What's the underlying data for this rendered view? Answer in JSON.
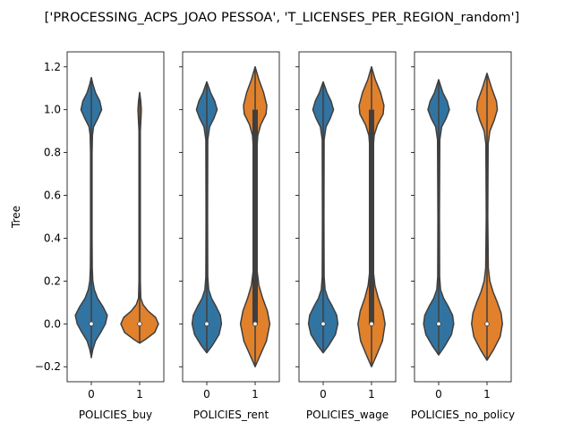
{
  "chart_data": {
    "type": "violin",
    "title": "['PROCESSING_ACPS_JOAO PESSOA', 'T_LICENSES_PER_REGION_random']",
    "ylabel": "Tree",
    "ylim": [
      -0.27,
      1.27
    ],
    "yticks": [
      -0.2,
      0.0,
      0.2,
      0.4,
      0.6,
      0.8,
      1.0,
      1.2
    ],
    "ytick_labels": [
      "−0.2",
      "0.0",
      "0.2",
      "0.4",
      "0.6",
      "0.8",
      "1.0",
      "1.2"
    ],
    "colors": {
      "0": "#3274a1",
      "1": "#e1812c",
      "edge": "#3f3f3f"
    },
    "panels": [
      {
        "xlabel": "POLICIES_buy",
        "categories": [
          "0",
          "1"
        ],
        "violins": [
          {
            "category": "0",
            "min": -0.16,
            "max": 1.15,
            "median": 0.0,
            "q1": 0.0,
            "q3": 0.0,
            "profile": [
              [
                -0.155,
                0
              ],
              [
                -0.12,
                0.08
              ],
              [
                -0.08,
                0.22
              ],
              [
                -0.04,
                0.5
              ],
              [
                0.0,
                0.75
              ],
              [
                0.04,
                0.85
              ],
              [
                0.08,
                0.62
              ],
              [
                0.12,
                0.33
              ],
              [
                0.16,
                0.16
              ],
              [
                0.2,
                0.08
              ],
              [
                0.26,
                0.05
              ],
              [
                0.4,
                0.04
              ],
              [
                0.6,
                0.04
              ],
              [
                0.8,
                0.04
              ],
              [
                0.88,
                0.06
              ],
              [
                0.92,
                0.12
              ],
              [
                0.96,
                0.35
              ],
              [
                1.0,
                0.55
              ],
              [
                1.04,
                0.45
              ],
              [
                1.08,
                0.22
              ],
              [
                1.12,
                0.08
              ],
              [
                1.15,
                0
              ]
            ]
          },
          {
            "category": "1",
            "min": -0.09,
            "max": 1.08,
            "median": 0.0,
            "q1": 0.0,
            "q3": 0.0,
            "profile": [
              [
                -0.09,
                0
              ],
              [
                -0.07,
                0.35
              ],
              [
                -0.04,
                0.8
              ],
              [
                0.0,
                1.0
              ],
              [
                0.03,
                0.85
              ],
              [
                0.06,
                0.45
              ],
              [
                0.09,
                0.18
              ],
              [
                0.12,
                0.06
              ],
              [
                0.2,
                0.035
              ],
              [
                0.5,
                0.035
              ],
              [
                0.9,
                0.035
              ],
              [
                0.96,
                0.07
              ],
              [
                1.0,
                0.09
              ],
              [
                1.04,
                0.06
              ],
              [
                1.08,
                0
              ]
            ]
          }
        ]
      },
      {
        "xlabel": "POLICIES_rent",
        "categories": [
          "0",
          "1"
        ],
        "violins": [
          {
            "category": "0",
            "min": -0.135,
            "max": 1.13,
            "median": 0.0,
            "q1": 0.0,
            "q3": 0.0,
            "profile": [
              [
                -0.135,
                0
              ],
              [
                -0.1,
                0.3
              ],
              [
                -0.05,
                0.65
              ],
              [
                0.0,
                0.78
              ],
              [
                0.04,
                0.72
              ],
              [
                0.08,
                0.5
              ],
              [
                0.12,
                0.25
              ],
              [
                0.16,
                0.1
              ],
              [
                0.22,
                0.05
              ],
              [
                0.5,
                0.04
              ],
              [
                0.86,
                0.05
              ],
              [
                0.92,
                0.15
              ],
              [
                0.96,
                0.38
              ],
              [
                1.0,
                0.55
              ],
              [
                1.04,
                0.42
              ],
              [
                1.08,
                0.2
              ],
              [
                1.13,
                0
              ]
            ]
          },
          {
            "category": "1",
            "min": -0.2,
            "max": 1.2,
            "median": 0.0,
            "q1": 0.0,
            "q3": 1.0,
            "profile": [
              [
                -0.2,
                0
              ],
              [
                -0.15,
                0.25
              ],
              [
                -0.08,
                0.6
              ],
              [
                0.0,
                0.78
              ],
              [
                0.06,
                0.65
              ],
              [
                0.12,
                0.4
              ],
              [
                0.18,
                0.2
              ],
              [
                0.25,
                0.1
              ],
              [
                0.35,
                0.07
              ],
              [
                0.6,
                0.065
              ],
              [
                0.8,
                0.08
              ],
              [
                0.88,
                0.14
              ],
              [
                0.93,
                0.3
              ],
              [
                0.98,
                0.58
              ],
              [
                1.02,
                0.62
              ],
              [
                1.08,
                0.45
              ],
              [
                1.14,
                0.2
              ],
              [
                1.2,
                0
              ]
            ]
          }
        ]
      },
      {
        "xlabel": "POLICIES_wage",
        "categories": [
          "0",
          "1"
        ],
        "violins": [
          {
            "category": "0",
            "min": -0.135,
            "max": 1.13,
            "median": 0.0,
            "q1": 0.0,
            "q3": 0.0,
            "profile": [
              [
                -0.135,
                0
              ],
              [
                -0.1,
                0.3
              ],
              [
                -0.05,
                0.65
              ],
              [
                0.0,
                0.78
              ],
              [
                0.04,
                0.72
              ],
              [
                0.08,
                0.5
              ],
              [
                0.12,
                0.25
              ],
              [
                0.16,
                0.1
              ],
              [
                0.22,
                0.05
              ],
              [
                0.5,
                0.04
              ],
              [
                0.86,
                0.05
              ],
              [
                0.92,
                0.15
              ],
              [
                0.96,
                0.38
              ],
              [
                1.0,
                0.55
              ],
              [
                1.04,
                0.42
              ],
              [
                1.08,
                0.2
              ],
              [
                1.13,
                0
              ]
            ]
          },
          {
            "category": "1",
            "min": -0.2,
            "max": 1.2,
            "median": 0.0,
            "q1": 0.0,
            "q3": 1.0,
            "profile": [
              [
                -0.2,
                0
              ],
              [
                -0.15,
                0.25
              ],
              [
                -0.08,
                0.58
              ],
              [
                0.0,
                0.72
              ],
              [
                0.06,
                0.6
              ],
              [
                0.12,
                0.36
              ],
              [
                0.18,
                0.18
              ],
              [
                0.25,
                0.09
              ],
              [
                0.35,
                0.06
              ],
              [
                0.6,
                0.055
              ],
              [
                0.8,
                0.07
              ],
              [
                0.88,
                0.14
              ],
              [
                0.93,
                0.32
              ],
              [
                0.98,
                0.62
              ],
              [
                1.02,
                0.66
              ],
              [
                1.08,
                0.48
              ],
              [
                1.14,
                0.2
              ],
              [
                1.2,
                0
              ]
            ]
          }
        ]
      },
      {
        "xlabel": "POLICIES_no_policy",
        "categories": [
          "0",
          "1"
        ],
        "violins": [
          {
            "category": "0",
            "min": -0.145,
            "max": 1.14,
            "median": 0.0,
            "q1": 0.0,
            "q3": 0.0,
            "profile": [
              [
                -0.145,
                0
              ],
              [
                -0.1,
                0.35
              ],
              [
                -0.05,
                0.68
              ],
              [
                0.0,
                0.8
              ],
              [
                0.04,
                0.74
              ],
              [
                0.08,
                0.52
              ],
              [
                0.12,
                0.26
              ],
              [
                0.16,
                0.1
              ],
              [
                0.22,
                0.05
              ],
              [
                0.5,
                0.04
              ],
              [
                0.86,
                0.06
              ],
              [
                0.92,
                0.16
              ],
              [
                0.96,
                0.4
              ],
              [
                1.0,
                0.57
              ],
              [
                1.04,
                0.45
              ],
              [
                1.08,
                0.22
              ],
              [
                1.14,
                0
              ]
            ]
          },
          {
            "category": "1",
            "min": -0.17,
            "max": 1.17,
            "median": 0.0,
            "q1": 0.0,
            "q3": 0.0,
            "profile": [
              [
                -0.17,
                0
              ],
              [
                -0.12,
                0.35
              ],
              [
                -0.06,
                0.7
              ],
              [
                0.0,
                0.82
              ],
              [
                0.05,
                0.75
              ],
              [
                0.1,
                0.55
              ],
              [
                0.15,
                0.32
              ],
              [
                0.2,
                0.15
              ],
              [
                0.26,
                0.07
              ],
              [
                0.5,
                0.04
              ],
              [
                0.84,
                0.06
              ],
              [
                0.9,
                0.15
              ],
              [
                0.95,
                0.38
              ],
              [
                1.0,
                0.55
              ],
              [
                1.04,
                0.5
              ],
              [
                1.1,
                0.25
              ],
              [
                1.17,
                0
              ]
            ]
          }
        ]
      }
    ]
  }
}
